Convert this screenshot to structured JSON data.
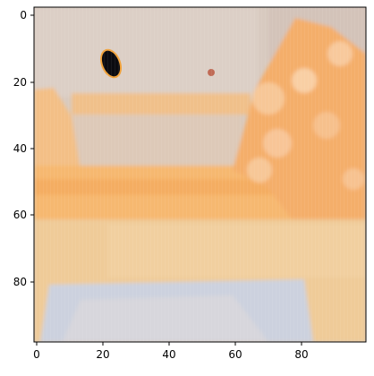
{
  "axes": {
    "x_ticks": [
      "0",
      "20",
      "40",
      "60",
      "80"
    ],
    "y_ticks": [
      "0",
      "20",
      "40",
      "60",
      "80"
    ]
  },
  "image": {
    "description_hidden": "",
    "colors": {
      "wall": "#d6c7bd",
      "wall_light": "#ddd0c6",
      "bed_orange": "#f6b56a",
      "bed_light": "#f3c48a",
      "floor": "#f0ca93",
      "blanket_blue": "#c9cfe0",
      "pillow_orange": "#f5a860",
      "pillow_light": "#f7c48e",
      "dark_object": "#0b0b10",
      "dot": "#c06a55"
    }
  }
}
